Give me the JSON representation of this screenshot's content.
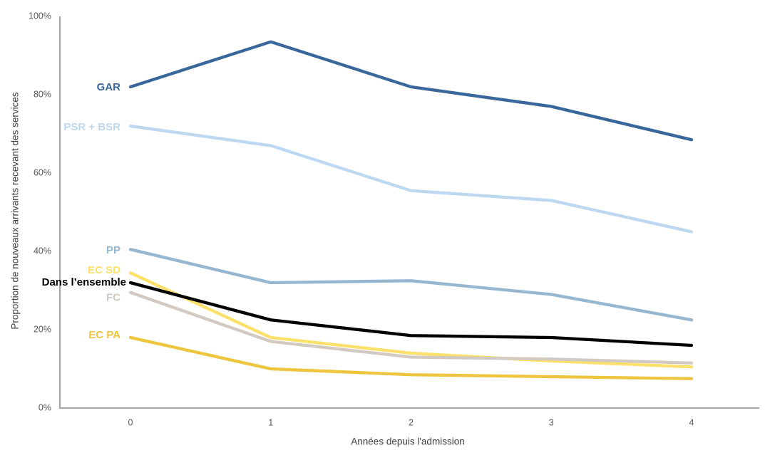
{
  "chart_data": {
    "type": "line",
    "title": "",
    "xlabel": "Années depuis l'admission",
    "ylabel": "Proportion de nouveaux arrivants recevant des services",
    "x": [
      0,
      1,
      2,
      3,
      4
    ],
    "xticks": [
      "0",
      "1",
      "2",
      "3",
      "4"
    ],
    "yticks": [
      "0%",
      "20%",
      "40%",
      "60%",
      "80%",
      "100%"
    ],
    "ytick_values": [
      0,
      20,
      40,
      60,
      80,
      100
    ],
    "ylim": [
      0,
      100
    ],
    "grid": false,
    "legend_position": "inline-labels-left-of-lines",
    "background_color": "#ffffff",
    "axis_line_color": "#a6a6a6",
    "tick_label_color": "#595959",
    "axis_title_color": "#404040",
    "series": [
      {
        "id": "gar",
        "label": "GAR",
        "color": "#39679C",
        "values": [
          82,
          93.5,
          82,
          77,
          68.5
        ]
      },
      {
        "id": "psr_bsr",
        "label": "PSR + BSR",
        "color": "#BDD9F2",
        "values": [
          72,
          67,
          55.5,
          53,
          45
        ]
      },
      {
        "id": "pp",
        "label": "PP",
        "color": "#97B7D1",
        "values": [
          40.5,
          32,
          32.5,
          29,
          22.5
        ]
      },
      {
        "id": "ec_sd",
        "label": "EC SD",
        "color": "#FBE16A",
        "values": [
          34.5,
          18,
          14,
          12,
          10.5
        ]
      },
      {
        "id": "ensemble",
        "label": "Dans l’ensemble",
        "color": "#000000",
        "values": [
          32,
          22.5,
          18.5,
          18,
          16
        ]
      },
      {
        "id": "fc",
        "label": "FC",
        "color": "#D2C9C3",
        "values": [
          29.5,
          17,
          13,
          12.5,
          11.5
        ]
      },
      {
        "id": "ec_pa",
        "label": "EC PA",
        "color": "#EDC53F",
        "values": [
          18,
          10,
          8.5,
          8,
          7.5
        ]
      }
    ]
  }
}
